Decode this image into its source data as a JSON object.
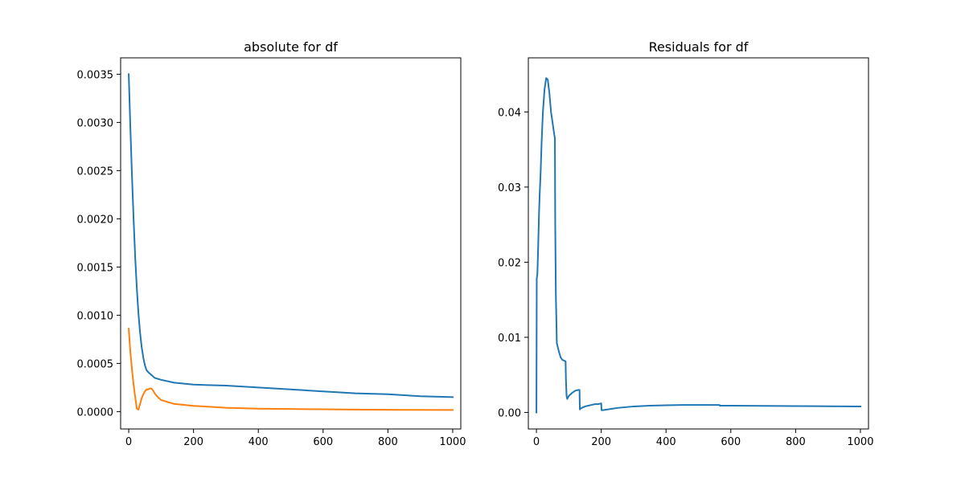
{
  "chart_data": [
    {
      "type": "line",
      "title": "absolute for df",
      "xlabel": "",
      "ylabel": "",
      "xlim": [
        -25,
        1025
      ],
      "ylim": [
        -0.00018,
        0.00367
      ],
      "xticks": [
        0,
        200,
        400,
        600,
        800,
        1000
      ],
      "xtick_labels": [
        "0",
        "200",
        "400",
        "600",
        "800",
        "1000"
      ],
      "yticks": [
        0.0,
        0.0005,
        0.001,
        0.0015,
        0.002,
        0.0025,
        0.003,
        0.0035
      ],
      "ytick_labels": [
        "0.0000",
        "0.0005",
        "0.0010",
        "0.0015",
        "0.0020",
        "0.0025",
        "0.0030",
        "0.0035"
      ],
      "grid": false,
      "legend": "none",
      "series": [
        {
          "color": "#1f77b4",
          "x": [
            0,
            5,
            10,
            15,
            20,
            25,
            30,
            35,
            40,
            45,
            50,
            55,
            60,
            70,
            80,
            100,
            140,
            200,
            300,
            400,
            500,
            600,
            700,
            800,
            900,
            1000
          ],
          "y": [
            0.0035,
            0.00295,
            0.00245,
            0.002,
            0.0016,
            0.00128,
            0.00102,
            0.00082,
            0.00067,
            0.00056,
            0.00048,
            0.00043,
            0.00041,
            0.00038,
            0.00035,
            0.00033,
            0.0003,
            0.00028,
            0.00027,
            0.00025,
            0.00023,
            0.00021,
            0.00019,
            0.00018,
            0.00016,
            0.00015
          ]
        },
        {
          "color": "#ff7f0e",
          "x": [
            0,
            5,
            10,
            15,
            20,
            25,
            30,
            35,
            40,
            45,
            50,
            55,
            60,
            65,
            70,
            75,
            80,
            90,
            100,
            120,
            140,
            170,
            200,
            250,
            300,
            400,
            500,
            600,
            700,
            800,
            900,
            1000
          ],
          "y": [
            0.00086,
            0.00062,
            0.00044,
            0.00028,
            0.00015,
            3e-05,
            2e-05,
            8e-05,
            0.00014,
            0.00018,
            0.00021,
            0.00023,
            0.00023,
            0.00024,
            0.00024,
            0.00022,
            0.00019,
            0.00015,
            0.00012,
            0.0001,
            8e-05,
            7e-05,
            6e-05,
            5e-05,
            4e-05,
            3e-05,
            2.7e-05,
            2.4e-05,
            2.1e-05,
            1.9e-05,
            1.8e-05,
            1.7e-05
          ]
        }
      ]
    },
    {
      "type": "line",
      "title": "Residuals for df",
      "xlabel": "",
      "ylabel": "",
      "xlim": [
        -25,
        1025
      ],
      "ylim": [
        -0.0022,
        0.0472
      ],
      "xticks": [
        0,
        200,
        400,
        600,
        800,
        1000
      ],
      "xtick_labels": [
        "0",
        "200",
        "400",
        "600",
        "800",
        "1000"
      ],
      "yticks": [
        0.0,
        0.01,
        0.02,
        0.03,
        0.04
      ],
      "ytick_labels": [
        "0.00",
        "0.01",
        "0.02",
        "0.03",
        "0.04"
      ],
      "grid": false,
      "legend": "none",
      "series": [
        {
          "color": "#1f77b4",
          "x": [
            0,
            1,
            3,
            5,
            8,
            10,
            13,
            16,
            20,
            25,
            30,
            35,
            40,
            45,
            50,
            55,
            57,
            58,
            60,
            63,
            67,
            70,
            75,
            80,
            85,
            90,
            91,
            93,
            95,
            100,
            110,
            120,
            130,
            133,
            134,
            136,
            140,
            150,
            160,
            170,
            180,
            190,
            200,
            201,
            205,
            220,
            250,
            300,
            350,
            400,
            450,
            500,
            550,
            565,
            566,
            570,
            600,
            700,
            800,
            900,
            1000
          ],
          "y": [
            0.0,
            0.0178,
            0.0185,
            0.0215,
            0.0265,
            0.029,
            0.032,
            0.036,
            0.04,
            0.043,
            0.0445,
            0.0443,
            0.0425,
            0.04,
            0.0385,
            0.037,
            0.0365,
            0.025,
            0.0155,
            0.0092,
            0.0085,
            0.008,
            0.0073,
            0.007,
            0.0069,
            0.0068,
            0.0045,
            0.0022,
            0.0018,
            0.0022,
            0.0026,
            0.0029,
            0.003,
            0.003,
            0.0004,
            0.0005,
            0.0006,
            0.0008,
            0.0009,
            0.001,
            0.0011,
            0.0011,
            0.0012,
            0.0003,
            0.0003,
            0.0004,
            0.0006,
            0.0008,
            0.0009,
            0.00095,
            0.001,
            0.001,
            0.001,
            0.001,
            0.0009,
            0.0009,
            0.0009,
            0.00088,
            0.00085,
            0.00082,
            0.0008
          ]
        }
      ]
    }
  ]
}
